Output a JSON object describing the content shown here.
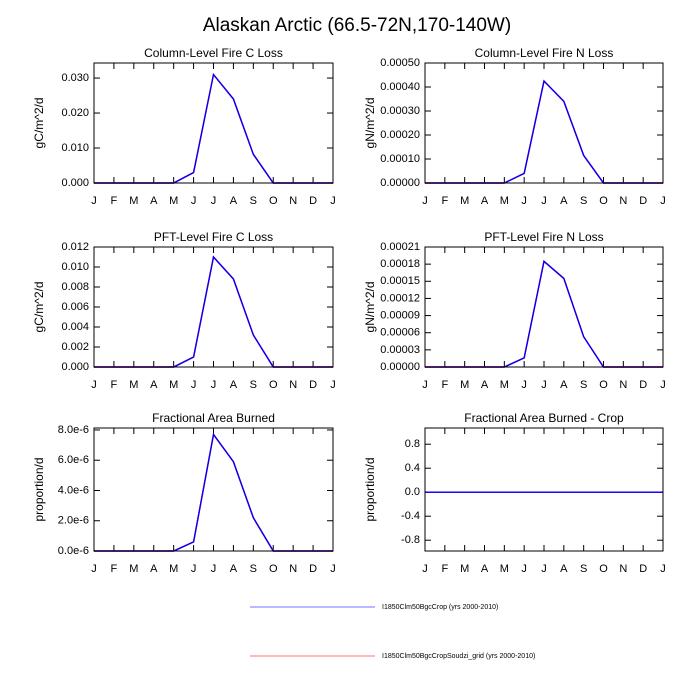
{
  "title": "Alaskan Arctic (66.5-72N,170-140W)",
  "legend": [
    {
      "name": "I1850Clm50BgcCrop (yrs 2000-2010)",
      "color": "#0000ff"
    },
    {
      "name": "I1850Clm50BgcCropSoudzi_grid (yrs 2000-2010)",
      "color": "#ff0000"
    }
  ],
  "chart_data": [
    {
      "type": "line",
      "title": "Column-Level Fire C Loss",
      "y_label": "gC/m^2/d",
      "categories": [
        "J",
        "F",
        "M",
        "A",
        "M",
        "J",
        "J",
        "A",
        "S",
        "O",
        "N",
        "D",
        "J"
      ],
      "ylim": [
        0,
        0.0343
      ],
      "yticks": [
        {
          "value": 0,
          "label": "0.000"
        },
        {
          "value": 0.01,
          "label": "0.010"
        },
        {
          "value": 0.02,
          "label": "0.020"
        },
        {
          "value": 0.03,
          "label": "0.030"
        }
      ],
      "series": [
        {
          "color": "#ff0000",
          "values": [
            0,
            0,
            0,
            0,
            0,
            0.003,
            0.031,
            0.024,
            0.0082,
            0,
            0,
            0,
            0
          ]
        },
        {
          "color": "#0000ff",
          "values": [
            0,
            0,
            0,
            0,
            0,
            0.003,
            0.031,
            0.024,
            0.0082,
            0,
            0,
            0,
            0
          ]
        }
      ]
    },
    {
      "type": "line",
      "title": "Column-Level Fire N Loss",
      "y_label": "gN/m^2/d",
      "categories": [
        "J",
        "F",
        "M",
        "A",
        "M",
        "J",
        "J",
        "A",
        "S",
        "O",
        "N",
        "D",
        "J"
      ],
      "ylim": [
        0,
        0.0005
      ],
      "yticks": [
        {
          "value": 0,
          "label": "0.00000"
        },
        {
          "value": 0.0001,
          "label": "0.00010"
        },
        {
          "value": 0.0002,
          "label": "0.00020"
        },
        {
          "value": 0.0003,
          "label": "0.00030"
        },
        {
          "value": 0.0004,
          "label": "0.00040"
        },
        {
          "value": 0.0005,
          "label": "0.00050"
        }
      ],
      "series": [
        {
          "color": "#ff0000",
          "values": [
            0,
            0,
            0,
            0,
            0,
            4e-05,
            0.000425,
            0.00034,
            0.000115,
            0,
            0,
            0,
            0
          ]
        },
        {
          "color": "#0000ff",
          "values": [
            0,
            0,
            0,
            0,
            0,
            4e-05,
            0.000425,
            0.00034,
            0.000115,
            0,
            0,
            0,
            0
          ]
        }
      ]
    },
    {
      "type": "line",
      "title": "PFT-Level Fire C Loss",
      "y_label": "gC/m^2/d",
      "categories": [
        "J",
        "F",
        "M",
        "A",
        "M",
        "J",
        "J",
        "A",
        "S",
        "O",
        "N",
        "D",
        "J"
      ],
      "ylim": [
        0,
        0.012
      ],
      "yticks": [
        {
          "value": 0,
          "label": "0.000"
        },
        {
          "value": 0.002,
          "label": "0.002"
        },
        {
          "value": 0.004,
          "label": "0.004"
        },
        {
          "value": 0.006,
          "label": "0.006"
        },
        {
          "value": 0.008,
          "label": "0.008"
        },
        {
          "value": 0.01,
          "label": "0.010"
        },
        {
          "value": 0.012,
          "label": "0.012"
        }
      ],
      "series": [
        {
          "color": "#ff0000",
          "values": [
            0,
            0,
            0,
            0,
            0,
            0.001,
            0.011,
            0.0088,
            0.0032,
            0,
            0,
            0,
            0
          ]
        },
        {
          "color": "#0000ff",
          "values": [
            0,
            0,
            0,
            0,
            0,
            0.001,
            0.011,
            0.0088,
            0.0032,
            0,
            0,
            0,
            0
          ]
        }
      ]
    },
    {
      "type": "line",
      "title": "PFT-Level Fire N Loss",
      "y_label": "gN/m^2/d",
      "categories": [
        "J",
        "F",
        "M",
        "A",
        "M",
        "J",
        "J",
        "A",
        "S",
        "O",
        "N",
        "D",
        "J"
      ],
      "ylim": [
        0,
        0.00021
      ],
      "yticks": [
        {
          "value": 0,
          "label": "0.00000"
        },
        {
          "value": 3e-05,
          "label": "0.00003"
        },
        {
          "value": 6e-05,
          "label": "0.00006"
        },
        {
          "value": 9e-05,
          "label": "0.00009"
        },
        {
          "value": 0.00012,
          "label": "0.00012"
        },
        {
          "value": 0.00015,
          "label": "0.00015"
        },
        {
          "value": 0.00018,
          "label": "0.00018"
        },
        {
          "value": 0.00021,
          "label": "0.00021"
        }
      ],
      "series": [
        {
          "color": "#ff0000",
          "values": [
            0,
            0,
            0,
            0,
            0,
            1.6e-05,
            0.000185,
            0.000155,
            5.3e-05,
            0,
            0,
            0,
            0
          ]
        },
        {
          "color": "#0000ff",
          "values": [
            0,
            0,
            0,
            0,
            0,
            1.6e-05,
            0.000185,
            0.000155,
            5.3e-05,
            0,
            0,
            0,
            0
          ]
        }
      ]
    },
    {
      "type": "line",
      "title": "Fractional Area Burned",
      "y_label": "proportion/d",
      "categories": [
        "J",
        "F",
        "M",
        "A",
        "M",
        "J",
        "J",
        "A",
        "S",
        "O",
        "N",
        "D",
        "J"
      ],
      "ylim": [
        0,
        8.13e-06
      ],
      "yticks": [
        {
          "value": 0,
          "label": "0.0e-6"
        },
        {
          "value": 2e-06,
          "label": "2.0e-6"
        },
        {
          "value": 4e-06,
          "label": "4.0e-6"
        },
        {
          "value": 6e-06,
          "label": "6.0e-6"
        },
        {
          "value": 8e-06,
          "label": "8.0e-6"
        }
      ],
      "series": [
        {
          "color": "#ff0000",
          "values": [
            0,
            0,
            0,
            0,
            0,
            6e-07,
            7.7e-06,
            5.9e-06,
            2.2e-06,
            0,
            0,
            0,
            0
          ]
        },
        {
          "color": "#0000ff",
          "values": [
            0,
            0,
            0,
            0,
            0,
            6e-07,
            7.7e-06,
            5.9e-06,
            2.2e-06,
            0,
            0,
            0,
            0
          ]
        }
      ]
    },
    {
      "type": "line",
      "title": "Fractional Area Burned - Crop",
      "y_label": "proportion/d",
      "categories": [
        "J",
        "F",
        "M",
        "A",
        "M",
        "J",
        "J",
        "A",
        "S",
        "O",
        "N",
        "D",
        "J"
      ],
      "ylim": [
        -0.98,
        1.07
      ],
      "yticks": [
        -0.8,
        -0.4,
        {
          "value": 0,
          "label": "0.0"
        },
        0.4,
        0.8
      ],
      "series": [
        {
          "color": "#ff0000",
          "values": [
            0,
            0,
            0,
            0,
            0,
            0,
            0,
            0,
            0,
            0,
            0,
            0,
            0
          ]
        },
        {
          "color": "#0000ff",
          "values": [
            0,
            0,
            0,
            0,
            0,
            0,
            0,
            0,
            0,
            0,
            0,
            0,
            0
          ]
        }
      ]
    }
  ]
}
